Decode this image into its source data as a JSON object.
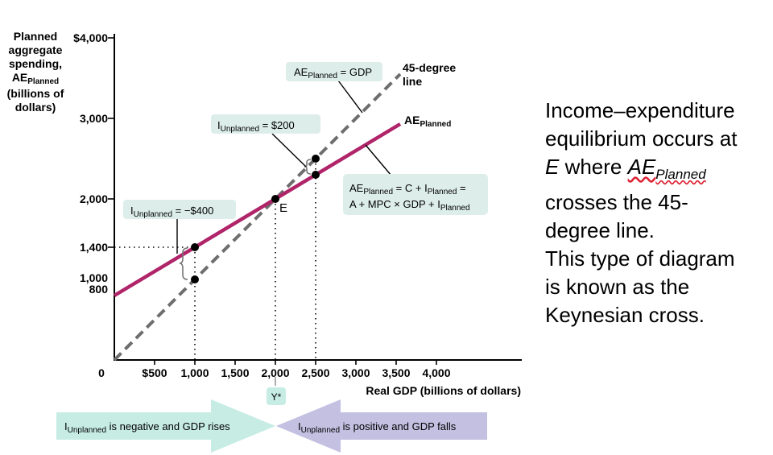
{
  "chart_data": {
    "type": "line",
    "ylabel_lines": [
      "Planned",
      "aggregate",
      "spending,",
      "AE",
      "(billions of",
      "dollars)"
    ],
    "ylabel_sub": "Planned",
    "xlabel": "Real GDP (billions of dollars)",
    "origin_label": "0",
    "x_ticks": [
      "$500",
      "1,000",
      "1,500",
      "2,000",
      "2,500",
      "3,000",
      "3,500",
      "4,000"
    ],
    "x_tick_values": [
      500,
      1000,
      1500,
      2000,
      2500,
      3000,
      3500,
      4000
    ],
    "y_ticks": [
      "800",
      "1,000",
      "1,400",
      "2,000",
      "3,000",
      "$4,000"
    ],
    "y_tick_values": [
      800,
      1000,
      1400,
      2000,
      3000,
      4000
    ],
    "xlim": [
      0,
      5000
    ],
    "ylim": [
      0,
      4000
    ],
    "series": [
      {
        "name": "45-degree line",
        "label_lines": [
          "45-degree",
          "line"
        ],
        "color": "#6e6e6e",
        "dash": true,
        "x": [
          0,
          3550
        ],
        "y": [
          0,
          3550
        ]
      },
      {
        "name": "AE",
        "name_sub": "Planned",
        "color": "#b0246a",
        "dash": false,
        "x": [
          0,
          3550
        ],
        "y": [
          800,
          2930
        ]
      }
    ],
    "points": [
      {
        "x": 1000,
        "y": 1400
      },
      {
        "x": 1000,
        "y": 1000
      },
      {
        "x": 2000,
        "y": 2000
      },
      {
        "x": 2500,
        "y": 2500
      },
      {
        "x": 2500,
        "y": 2300
      }
    ],
    "equilibrium_label": "E",
    "ystar_label": "Y*",
    "callouts": {
      "ae_gdp": {
        "main": "AE",
        "sub": "Planned",
        "rest": " = GDP"
      },
      "i_200": {
        "main": "I",
        "sub": "Unplanned",
        "rest": " = $200"
      },
      "i_neg400": {
        "main": "I",
        "sub": "Unplanned",
        "rest": " = −$400"
      },
      "ae_def": {
        "line1_main": "AE",
        "line1_sub": "Planned",
        "line1_mid": " = C + I",
        "line1_sub2": "Planned",
        "line1_end": " =",
        "line2_main": "A + MPC × GDP + I",
        "line2_sub": "Planned"
      }
    },
    "arrows": {
      "left": {
        "main": "I",
        "sub": "Unplanned",
        "rest": " is negative and GDP rises",
        "color": "#c6ece4"
      },
      "right": {
        "main": "I",
        "sub": "Unplanned",
        "rest": " is positive and GDP falls",
        "color": "#c3c0e2"
      }
    }
  },
  "side_text": {
    "line1": "Income–expenditure",
    "line2": "equilibrium occurs at",
    "line3_sym": "E",
    "line3_mid": " where ",
    "line3_ae": "AE",
    "line3_sub": "Planned",
    "line4": "crosses the 45-",
    "line5": "degree line.",
    "line6": "This type of diagram",
    "line7": "is known as the",
    "line8": "Keynesian cross."
  }
}
